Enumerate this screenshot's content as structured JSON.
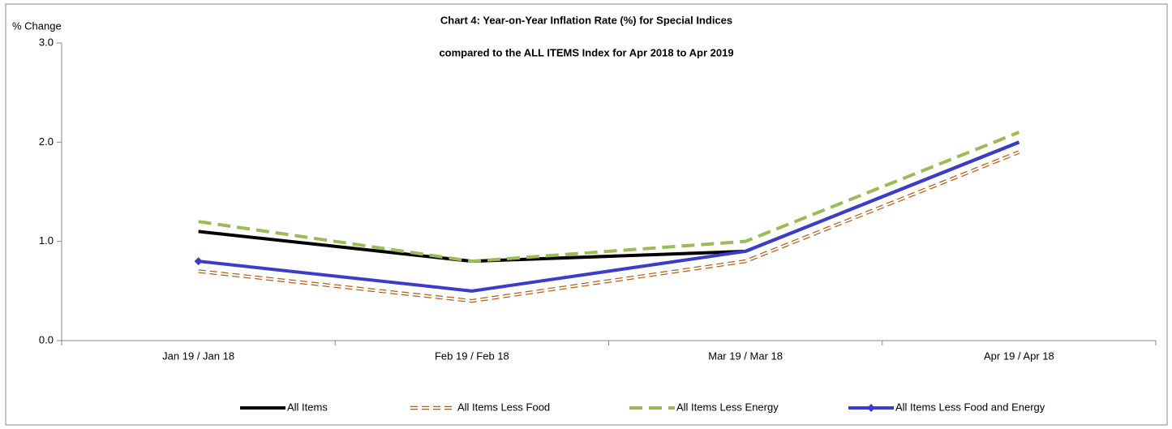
{
  "chart_data": {
    "type": "line",
    "title": "Chart 4: Year-on-Year Inflation Rate (%) for Special Indices",
    "subtitle": "compared to the ALL ITEMS Index for Apr 2018 to Apr 2019",
    "y_label": "% Change",
    "categories": [
      "Jan 19 / Jan 18",
      "Feb 19 / Feb 18",
      "Mar 19 / Mar 18",
      "Apr 19 / Apr 18"
    ],
    "series": [
      {
        "name": "All Items",
        "color": "#000000",
        "style": "solid",
        "values": [
          1.1,
          0.8,
          0.9,
          2.0
        ]
      },
      {
        "name": "All Items Less Food",
        "color": "#b0601e",
        "style": "double-dash",
        "values": [
          0.7,
          0.4,
          0.8,
          1.9
        ]
      },
      {
        "name": "All Items Less Energy",
        "color": "#9bbb59",
        "style": "dash",
        "values": [
          1.2,
          0.8,
          1.0,
          2.1
        ]
      },
      {
        "name": "All Items Less Food and Energy",
        "color": "#3c3cc8",
        "style": "solid",
        "marker": "diamond",
        "values": [
          0.8,
          0.5,
          0.9,
          2.0
        ]
      }
    ],
    "ylim": [
      0,
      3
    ],
    "yticks": [
      {
        "value": 0,
        "label": "0.0"
      },
      {
        "value": 1,
        "label": "1.0"
      },
      {
        "value": 2,
        "label": "2.0"
      },
      {
        "value": 3,
        "label": "3.0"
      }
    ],
    "legend": "bottom"
  }
}
